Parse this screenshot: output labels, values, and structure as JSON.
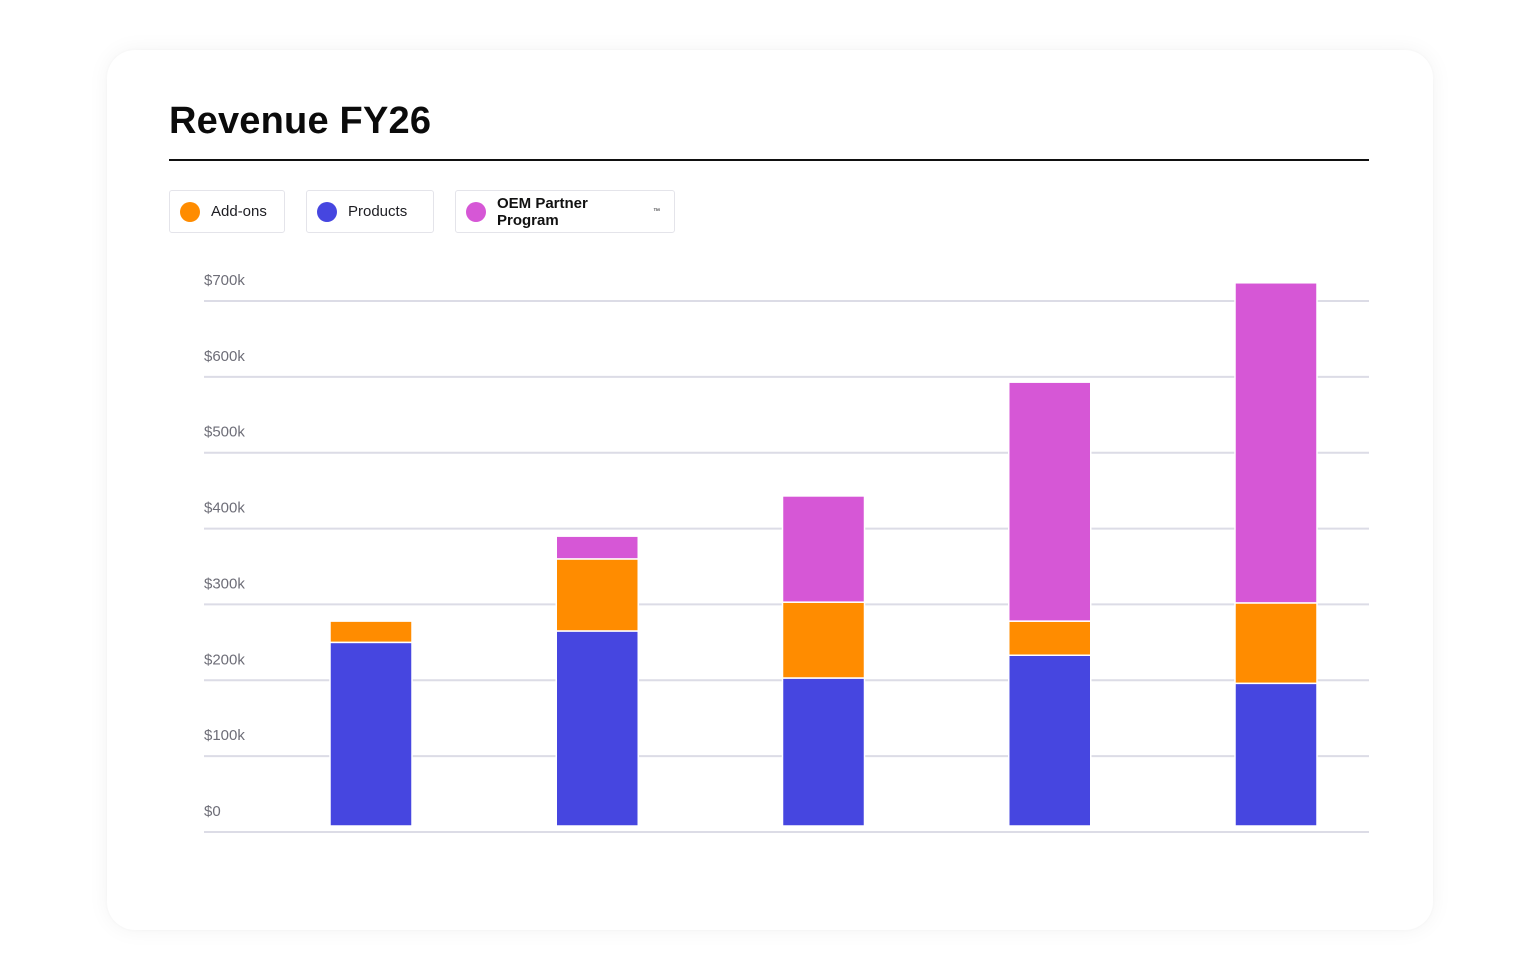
{
  "chart_data": {
    "type": "bar",
    "stacked": true,
    "title": "Revenue FY26",
    "categories": [
      "",
      "",
      "",
      "",
      ""
    ],
    "series": [
      {
        "name": "Products",
        "color": "#4646e0",
        "values": [
          250,
          265,
          203,
          233,
          196
        ]
      },
      {
        "name": "Add-ons",
        "color": "#ff8c00",
        "values": [
          28,
          95,
          100,
          45,
          106
        ]
      },
      {
        "name": "OEM Partner Program",
        "color": "#d657d6",
        "values": [
          0,
          30,
          140,
          315,
          422
        ]
      }
    ],
    "yticks": [
      "$0",
      "$100k",
      "$200k",
      "$300k",
      "$400k",
      "$500k",
      "$600k",
      "$700k"
    ],
    "ylim": [
      0,
      700
    ],
    "grid": true,
    "legend_position": "top-left"
  },
  "legend": {
    "items": [
      {
        "label": "Add-ons",
        "color": "#ff8c00"
      },
      {
        "label": "Products",
        "color": "#4646e0"
      },
      {
        "label": "OEM Partner Program",
        "color": "#d657d6",
        "mark": "™"
      }
    ]
  }
}
